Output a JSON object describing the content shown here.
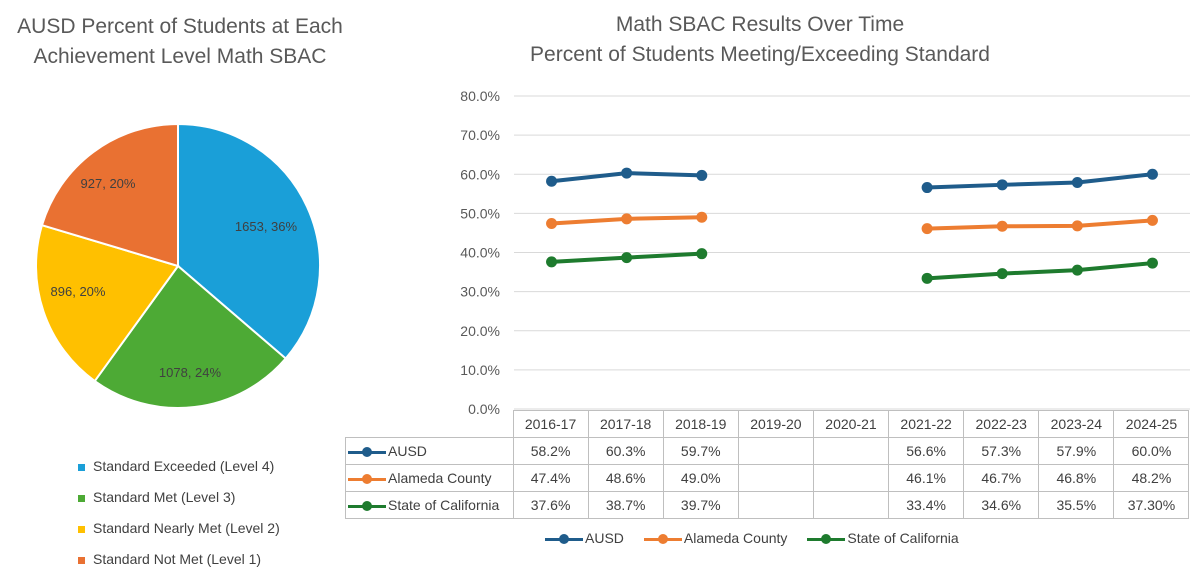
{
  "charts": {
    "pie": {
      "title_line1": "AUSD Percent of Students at Each",
      "title_line2": "Achievement Level Math SBAC"
    },
    "line": {
      "title_line1": "Math SBAC Results Over Time",
      "title_line2": "Percent of Students Meeting/Exceeding Standard"
    }
  },
  "chart_data": [
    {
      "type": "pie",
      "title": "AUSD Percent of Students at Each Achievement Level Math SBAC",
      "slices": [
        {
          "label": "Standard Exceeded (Level 4)",
          "value": 1653,
          "percent": 36,
          "data_label": "1653, 36%",
          "color": "#1a9fd8"
        },
        {
          "label": "Standard Met (Level 3)",
          "value": 1078,
          "percent": 24,
          "data_label": "1078, 24%",
          "color": "#4daa35"
        },
        {
          "label": "Standard Nearly Met (Level 2)",
          "value": 896,
          "percent": 20,
          "data_label": "896, 20%",
          "color": "#ffc000"
        },
        {
          "label": "Standard Not Met (Level 1)",
          "value": 927,
          "percent": 20,
          "data_label": "927, 20%",
          "color": "#e97132"
        }
      ],
      "legend_position": "bottom"
    },
    {
      "type": "line",
      "title": "Math SBAC Results Over Time Percent of Students Meeting/Exceeding Standard",
      "categories": [
        "2016-17",
        "2017-18",
        "2018-19",
        "2019-20",
        "2020-21",
        "2021-22",
        "2022-23",
        "2023-24",
        "2024-25"
      ],
      "ylim": [
        0,
        80
      ],
      "yticks": [
        "0.0%",
        "10.0%",
        "20.0%",
        "30.0%",
        "40.0%",
        "50.0%",
        "60.0%",
        "70.0%",
        "80.0%"
      ],
      "grid": true,
      "legend_position": "bottom",
      "series": [
        {
          "name": "AUSD",
          "color": "#1f5c8b",
          "values": [
            58.2,
            60.3,
            59.7,
            null,
            null,
            56.6,
            57.3,
            57.9,
            60.0
          ],
          "table": [
            "58.2%",
            "60.3%",
            "59.7%",
            "",
            "",
            "56.6%",
            "57.3%",
            "57.9%",
            "60.0%"
          ]
        },
        {
          "name": "Alameda County",
          "color": "#ed7d31",
          "values": [
            47.4,
            48.6,
            49.0,
            null,
            null,
            46.1,
            46.7,
            46.8,
            48.2
          ],
          "table": [
            "47.4%",
            "48.6%",
            "49.0%",
            "",
            "",
            "46.1%",
            "46.7%",
            "46.8%",
            "48.2%"
          ]
        },
        {
          "name": "State of California",
          "color": "#1e7b2e",
          "values": [
            37.6,
            38.7,
            39.7,
            null,
            null,
            33.4,
            34.6,
            35.5,
            37.3
          ],
          "table": [
            "37.6%",
            "38.7%",
            "39.7%",
            "",
            "",
            "33.4%",
            "34.6%",
            "35.5%",
            "37.30%"
          ]
        }
      ]
    }
  ]
}
